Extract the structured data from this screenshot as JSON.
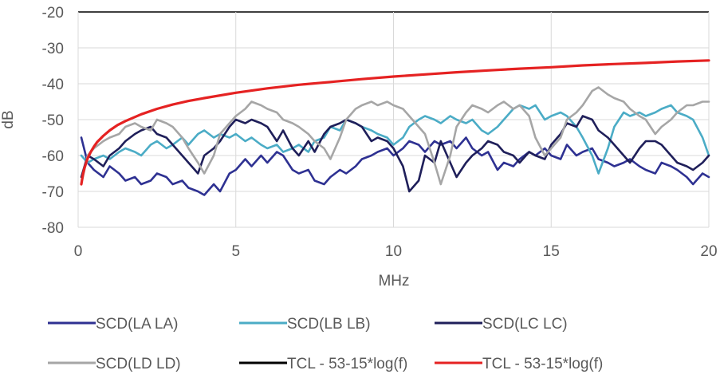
{
  "chart_data": {
    "type": "line",
    "title": "",
    "xlabel": "MHz",
    "ylabel": "dB",
    "xlim": [
      0,
      20
    ],
    "ylim": [
      -80,
      -20
    ],
    "x_ticks": [
      0,
      5,
      10,
      15,
      20
    ],
    "y_ticks": [
      -80,
      -70,
      -60,
      -50,
      -40,
      -30,
      -20
    ],
    "grid": true,
    "legend_position": "bottom",
    "series": [
      {
        "name": "SCD(LA LA)",
        "color": "#2E3192",
        "x": [
          0.1,
          0.3,
          0.5,
          0.8,
          1.0,
          1.3,
          1.5,
          1.8,
          2.0,
          2.3,
          2.5,
          2.8,
          3.0,
          3.3,
          3.5,
          3.8,
          4.0,
          4.3,
          4.5,
          4.8,
          5.0,
          5.3,
          5.5,
          5.8,
          6.0,
          6.3,
          6.5,
          6.8,
          7.0,
          7.3,
          7.5,
          7.8,
          8.0,
          8.3,
          8.5,
          8.8,
          9.0,
          9.3,
          9.5,
          9.8,
          10.0,
          10.3,
          10.5,
          10.8,
          11.0,
          11.3,
          11.5,
          11.8,
          12.0,
          12.3,
          12.5,
          12.8,
          13.0,
          13.3,
          13.5,
          13.8,
          14.0,
          14.3,
          14.5,
          14.8,
          15.0,
          15.3,
          15.5,
          15.8,
          16.0,
          16.3,
          16.5,
          16.8,
          17.0,
          17.3,
          17.5,
          17.8,
          18.0,
          18.3,
          18.5,
          18.8,
          19.0,
          19.3,
          19.5,
          19.8,
          20.0
        ],
        "values": [
          -55,
          -62,
          -64,
          -66,
          -63,
          -65,
          -67,
          -66,
          -68,
          -67,
          -65,
          -66,
          -68,
          -67,
          -69,
          -70,
          -71,
          -68,
          -70,
          -65,
          -64,
          -61,
          -63,
          -60,
          -62,
          -59,
          -60,
          -64,
          -65,
          -64,
          -67,
          -68,
          -66,
          -64,
          -65,
          -63,
          -61,
          -60,
          -59,
          -58,
          -60,
          -58,
          -56,
          -57,
          -59,
          -56,
          -57,
          -56,
          -58,
          -55,
          -58,
          -60,
          -59,
          -64,
          -62,
          -63,
          -61,
          -59,
          -60,
          -58,
          -60,
          -61,
          -57,
          -60,
          -59,
          -58,
          -61,
          -62,
          -63,
          -62,
          -61,
          -63,
          -64,
          -65,
          -62,
          -63,
          -64,
          -66,
          -68,
          -65,
          -66
        ]
      },
      {
        "name": "SCD(LB LB)",
        "color": "#4BACC6",
        "x": [
          0.1,
          0.3,
          0.5,
          0.8,
          1.0,
          1.3,
          1.5,
          1.8,
          2.0,
          2.3,
          2.5,
          2.8,
          3.0,
          3.3,
          3.5,
          3.8,
          4.0,
          4.3,
          4.5,
          4.8,
          5.0,
          5.3,
          5.5,
          5.8,
          6.0,
          6.3,
          6.5,
          6.8,
          7.0,
          7.3,
          7.5,
          7.8,
          8.0,
          8.3,
          8.5,
          8.8,
          9.0,
          9.3,
          9.5,
          9.8,
          10.0,
          10.3,
          10.5,
          10.8,
          11.0,
          11.3,
          11.5,
          11.8,
          12.0,
          12.3,
          12.5,
          12.8,
          13.0,
          13.3,
          13.5,
          13.8,
          14.0,
          14.3,
          14.5,
          14.8,
          15.0,
          15.3,
          15.5,
          15.8,
          16.0,
          16.3,
          16.5,
          16.8,
          17.0,
          17.3,
          17.5,
          17.8,
          18.0,
          18.3,
          18.5,
          18.8,
          19.0,
          19.3,
          19.5,
          19.8,
          20.0
        ],
        "values": [
          -60,
          -62,
          -61,
          -60,
          -61,
          -59,
          -58,
          -59,
          -60,
          -57,
          -56,
          -58,
          -57,
          -55,
          -57,
          -54,
          -53,
          -55,
          -54,
          -55,
          -54,
          -56,
          -55,
          -57,
          -58,
          -57,
          -59,
          -58,
          -57,
          -59,
          -56,
          -55,
          -52,
          -53,
          -50,
          -51,
          -52,
          -53,
          -54,
          -55,
          -57,
          -55,
          -52,
          -50,
          -49,
          -50,
          -51,
          -49,
          -50,
          -51,
          -50,
          -53,
          -54,
          -52,
          -50,
          -47,
          -46,
          -47,
          -46,
          -50,
          -49,
          -48,
          -49,
          -52,
          -55,
          -60,
          -65,
          -58,
          -52,
          -48,
          -49,
          -48,
          -49,
          -48,
          -47,
          -46,
          -48,
          -49,
          -50,
          -55,
          -60
        ]
      },
      {
        "name": "SCD(LC LC)",
        "color": "#1F1F5A",
        "x": [
          0.1,
          0.3,
          0.5,
          0.8,
          1.0,
          1.3,
          1.5,
          1.8,
          2.0,
          2.3,
          2.5,
          2.8,
          3.0,
          3.3,
          3.5,
          3.8,
          4.0,
          4.3,
          4.5,
          4.8,
          5.0,
          5.3,
          5.5,
          5.8,
          6.0,
          6.3,
          6.5,
          6.8,
          7.0,
          7.3,
          7.5,
          7.8,
          8.0,
          8.3,
          8.5,
          8.8,
          9.0,
          9.3,
          9.5,
          9.8,
          10.0,
          10.3,
          10.5,
          10.8,
          11.0,
          11.3,
          11.5,
          11.8,
          12.0,
          12.3,
          12.5,
          12.8,
          13.0,
          13.3,
          13.5,
          13.8,
          14.0,
          14.3,
          14.5,
          14.8,
          15.0,
          15.3,
          15.5,
          15.8,
          16.0,
          16.3,
          16.5,
          16.8,
          17.0,
          17.3,
          17.5,
          17.8,
          18.0,
          18.3,
          18.5,
          18.8,
          19.0,
          19.3,
          19.5,
          19.8,
          20.0
        ],
        "values": [
          -66,
          -60,
          -61,
          -63,
          -60,
          -58,
          -56,
          -54,
          -53,
          -52,
          -54,
          -55,
          -57,
          -60,
          -62,
          -65,
          -60,
          -58,
          -56,
          -52,
          -50,
          -51,
          -50,
          -51,
          -52,
          -56,
          -53,
          -58,
          -60,
          -56,
          -59,
          -54,
          -52,
          -51,
          -50,
          -51,
          -52,
          -56,
          -55,
          -56,
          -58,
          -63,
          -70,
          -67,
          -60,
          -62,
          -56,
          -62,
          -66,
          -62,
          -60,
          -58,
          -56,
          -57,
          -59,
          -60,
          -62,
          -59,
          -60,
          -61,
          -57,
          -54,
          -51,
          -52,
          -49,
          -50,
          -53,
          -55,
          -57,
          -60,
          -62,
          -58,
          -56,
          -56,
          -57,
          -60,
          -62,
          -63,
          -64,
          -62,
          -60
        ]
      },
      {
        "name": "SCD(LD LD)",
        "color": "#A6A6A6",
        "x": [
          0.1,
          0.3,
          0.5,
          0.8,
          1.0,
          1.3,
          1.5,
          1.8,
          2.0,
          2.3,
          2.5,
          2.8,
          3.0,
          3.3,
          3.5,
          3.8,
          4.0,
          4.3,
          4.5,
          4.8,
          5.0,
          5.3,
          5.5,
          5.8,
          6.0,
          6.3,
          6.5,
          6.8,
          7.0,
          7.3,
          7.5,
          7.8,
          8.0,
          8.3,
          8.5,
          8.8,
          9.0,
          9.3,
          9.5,
          9.8,
          10.0,
          10.3,
          10.5,
          10.8,
          11.0,
          11.3,
          11.5,
          11.8,
          12.0,
          12.3,
          12.5,
          12.8,
          13.0,
          13.3,
          13.5,
          13.8,
          14.0,
          14.3,
          14.5,
          14.8,
          15.0,
          15.3,
          15.5,
          15.8,
          16.0,
          16.3,
          16.5,
          16.8,
          17.0,
          17.3,
          17.5,
          17.8,
          18.0,
          18.3,
          18.5,
          18.8,
          19.0,
          19.3,
          19.5,
          19.8,
          20.0
        ],
        "values": [
          -68,
          -60,
          -58,
          -56,
          -55,
          -54,
          -52,
          -51,
          -52,
          -53,
          -50,
          -51,
          -52,
          -55,
          -58,
          -62,
          -65,
          -60,
          -54,
          -51,
          -49,
          -47,
          -45,
          -46,
          -47,
          -48,
          -50,
          -51,
          -52,
          -54,
          -56,
          -58,
          -61,
          -55,
          -50,
          -47,
          -46,
          -45,
          -46,
          -45,
          -46,
          -47,
          -49,
          -52,
          -54,
          -62,
          -68,
          -60,
          -52,
          -48,
          -46,
          -47,
          -48,
          -46,
          -45,
          -47,
          -46,
          -49,
          -55,
          -60,
          -58,
          -55,
          -50,
          -48,
          -46,
          -42,
          -41,
          -43,
          -44,
          -45,
          -47,
          -49,
          -50,
          -54,
          -52,
          -50,
          -48,
          -46,
          -46,
          -45,
          -45
        ]
      },
      {
        "name": "TCL - 53-15*log(f)",
        "color": "#000000",
        "x": [],
        "values": []
      },
      {
        "name": "TCL - 53-15*log(f)",
        "color": "#E52222",
        "x": [
          0.1,
          0.15,
          0.2,
          0.3,
          0.4,
          0.5,
          0.6,
          0.8,
          1.0,
          1.25,
          1.5,
          2.0,
          2.5,
          3.0,
          3.5,
          4.0,
          5.0,
          6.0,
          7.0,
          8.0,
          9.0,
          10.0,
          11.0,
          12.0,
          13.0,
          14.0,
          15.0,
          16.0,
          17.0,
          18.0,
          19.0,
          20.0
        ],
        "values": [
          -68,
          -65.4,
          -63.5,
          -60.8,
          -59.0,
          -57.5,
          -56.3,
          -54.5,
          -53.0,
          -51.5,
          -50.4,
          -48.5,
          -47.0,
          -45.8,
          -44.8,
          -44.0,
          -42.5,
          -41.3,
          -40.3,
          -39.5,
          -38.7,
          -38.0,
          -37.4,
          -36.8,
          -36.3,
          -35.8,
          -35.4,
          -34.9,
          -34.5,
          -34.2,
          -33.8,
          -33.5
        ]
      }
    ]
  }
}
